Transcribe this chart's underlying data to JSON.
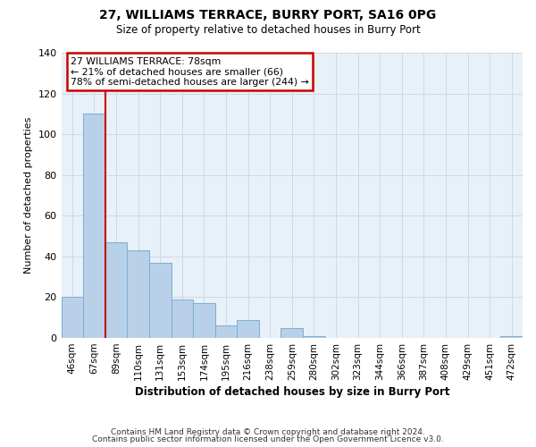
{
  "title": "27, WILLIAMS TERRACE, BURRY PORT, SA16 0PG",
  "subtitle": "Size of property relative to detached houses in Burry Port",
  "xlabel": "Distribution of detached houses by size in Burry Port",
  "ylabel": "Number of detached properties",
  "bar_labels": [
    "46sqm",
    "67sqm",
    "89sqm",
    "110sqm",
    "131sqm",
    "153sqm",
    "174sqm",
    "195sqm",
    "216sqm",
    "238sqm",
    "259sqm",
    "280sqm",
    "302sqm",
    "323sqm",
    "344sqm",
    "366sqm",
    "387sqm",
    "408sqm",
    "429sqm",
    "451sqm",
    "472sqm"
  ],
  "bar_values": [
    20,
    110,
    47,
    43,
    37,
    19,
    17,
    6,
    9,
    0,
    5,
    1,
    0,
    0,
    0,
    0,
    0,
    0,
    0,
    0,
    1
  ],
  "bar_color": "#b8d0e8",
  "bar_edge_color": "#7aafd4",
  "ylim": [
    0,
    140
  ],
  "yticks": [
    0,
    20,
    40,
    60,
    80,
    100,
    120,
    140
  ],
  "red_line_x": 1.5,
  "annotation_title": "27 WILLIAMS TERRACE: 78sqm",
  "annotation_line1": "← 21% of detached houses are smaller (66)",
  "annotation_line2": "78% of semi-detached houses are larger (244) →",
  "red_line_color": "#cc0000",
  "annotation_box_edge_color": "#cc0000",
  "grid_color": "#d0d8e8",
  "bg_color": "#e8f0f8",
  "footer_line1": "Contains HM Land Registry data © Crown copyright and database right 2024.",
  "footer_line2": "Contains public sector information licensed under the Open Government Licence v3.0."
}
